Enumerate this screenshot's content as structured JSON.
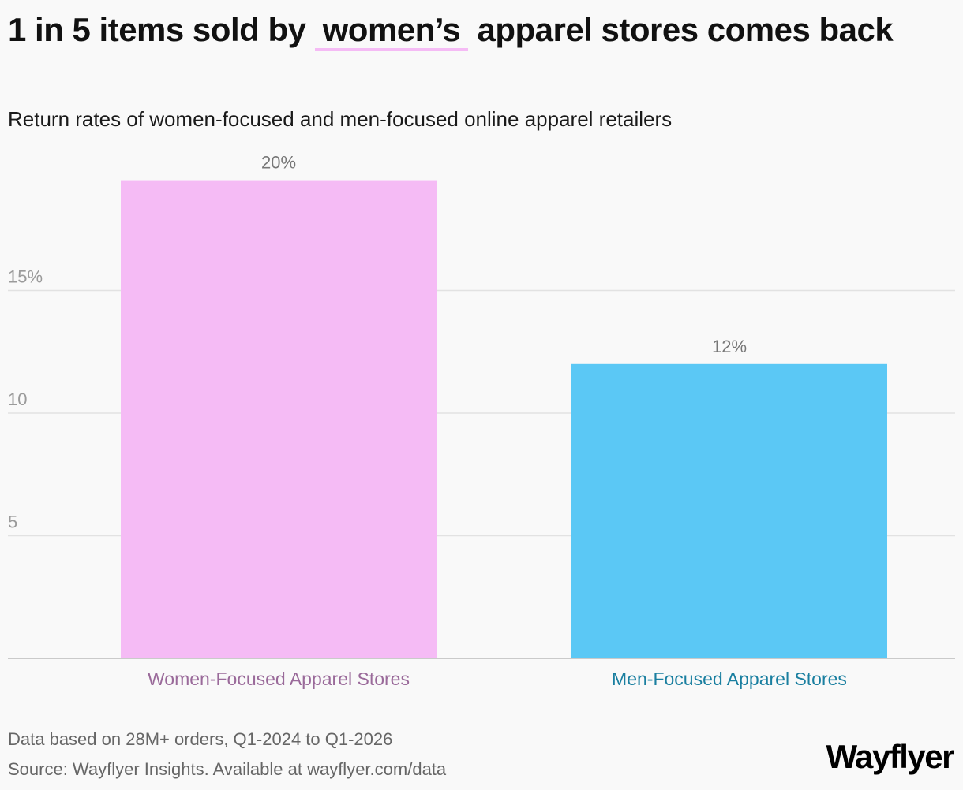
{
  "title_parts": {
    "before": "1 in 5 items sold by",
    "highlight": "women’s",
    "after": "apparel stores comes back"
  },
  "subtitle": "Return rates of women-focused and men-focused online apparel retailers",
  "footer": {
    "note": "Data based on 28M+ orders, Q1-2024 to Q1-2026",
    "source": "Source: Wayflyer Insights. Available at wayflyer.com/data"
  },
  "logo_text": "Wayflyer",
  "colors": {
    "women": "#f5bbf5",
    "men": "#5bc8f5",
    "women_label": "#9a6a9a",
    "men_label": "#1a7fa0",
    "highlight_underline": "#f5bbf5"
  },
  "chart_data": {
    "type": "bar",
    "categories": [
      "Women-Focused Apparel Stores",
      "Men-Focused Apparel Stores"
    ],
    "values": [
      19.5,
      12
    ],
    "value_labels": [
      "20%",
      "12%"
    ],
    "ylim": [
      0,
      21
    ],
    "yticks": [
      5,
      10,
      15
    ],
    "ytick_labels": [
      "5",
      "10",
      "15%"
    ],
    "grid": true,
    "xlabel": "",
    "ylabel": ""
  }
}
